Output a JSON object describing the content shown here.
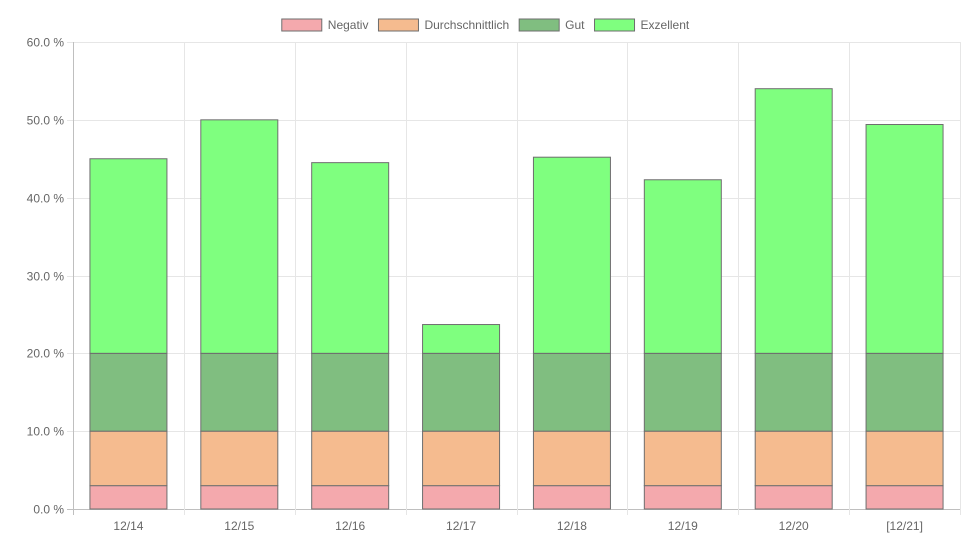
{
  "chart_data": {
    "type": "bar",
    "stacked": true,
    "categories": [
      "12/14",
      "12/15",
      "12/16",
      "12/17",
      "12/18",
      "12/19",
      "12/20",
      "[12/21]"
    ],
    "series": [
      {
        "name": "Negativ",
        "color": "#f4a9ad",
        "border": "#6e6e6e",
        "values": [
          3,
          3,
          3,
          3,
          3,
          3,
          3,
          3
        ]
      },
      {
        "name": "Durchschnittlich",
        "color": "#f5bb8f",
        "border": "#6e6e6e",
        "values": [
          7,
          7,
          7,
          7,
          7,
          7,
          7,
          7
        ]
      },
      {
        "name": "Gut",
        "color": "#80be80",
        "border": "#6e6e6e",
        "values": [
          10,
          10,
          10,
          10,
          10,
          10,
          10,
          10
        ]
      },
      {
        "name": "Exzellent",
        "color": "#7fff7f",
        "border": "#6e6e6e",
        "values": [
          25,
          30,
          24.5,
          3.7,
          25.2,
          22.3,
          34,
          29.4
        ]
      }
    ],
    "ylim": [
      0,
      60
    ],
    "y_ticks": [
      0,
      10,
      20,
      30,
      40,
      50,
      60
    ],
    "y_tick_labels": [
      "0.0 %",
      "10.0 %",
      "20.0 %",
      "30.0 %",
      "40.0 %",
      "50.0 %",
      "60.0 %"
    ],
    "grid": true,
    "legend_position": "top-center",
    "title": "",
    "xlabel": "",
    "ylabel": ""
  }
}
